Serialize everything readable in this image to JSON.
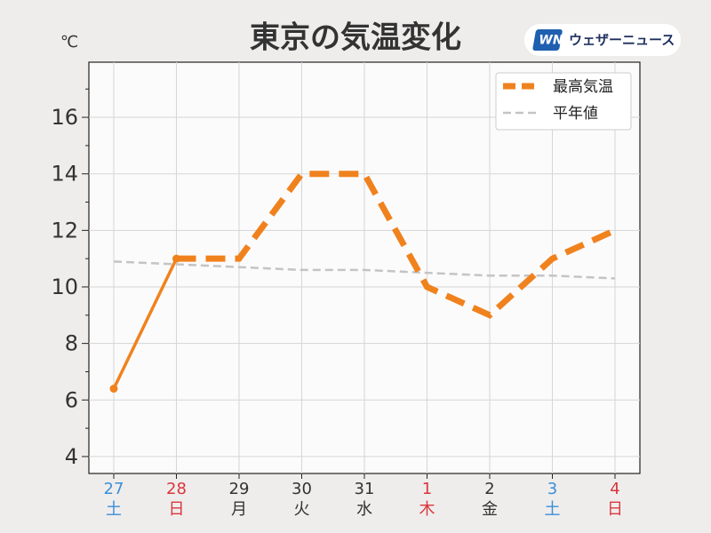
{
  "chart_data": {
    "type": "line",
    "title": "東京の気温変化",
    "unit": "℃",
    "logo_mark": "WN",
    "logo": "ウェザーニュース",
    "categories": [
      "27",
      "28",
      "29",
      "30",
      "31",
      "1",
      "2",
      "3",
      "4"
    ],
    "weekdays": [
      "土",
      "日",
      "月",
      "火",
      "水",
      "木",
      "金",
      "土",
      "日"
    ],
    "category_colors": [
      "#3a8fd8",
      "#d9363e",
      "#333333",
      "#333333",
      "#333333",
      "#d9363e",
      "#333333",
      "#3a8fd8",
      "#d9363e"
    ],
    "series": [
      {
        "name": "最高気温",
        "color": "#f0821e",
        "values": [
          6.4,
          11,
          11,
          14,
          14,
          10,
          9,
          11,
          12
        ],
        "observed_points": 2
      },
      {
        "name": "平年値",
        "color": "#c4c4c4",
        "values": [
          10.9,
          10.8,
          10.7,
          10.6,
          10.6,
          10.5,
          10.4,
          10.4,
          10.3
        ]
      }
    ],
    "ylim": [
      3.4,
      17.95
    ],
    "yticks": [
      4,
      6,
      8,
      10,
      12,
      14,
      16
    ],
    "yticks_minor": [
      5,
      7,
      9,
      11,
      13,
      15,
      17
    ],
    "grid": true,
    "legend": "upper right"
  }
}
